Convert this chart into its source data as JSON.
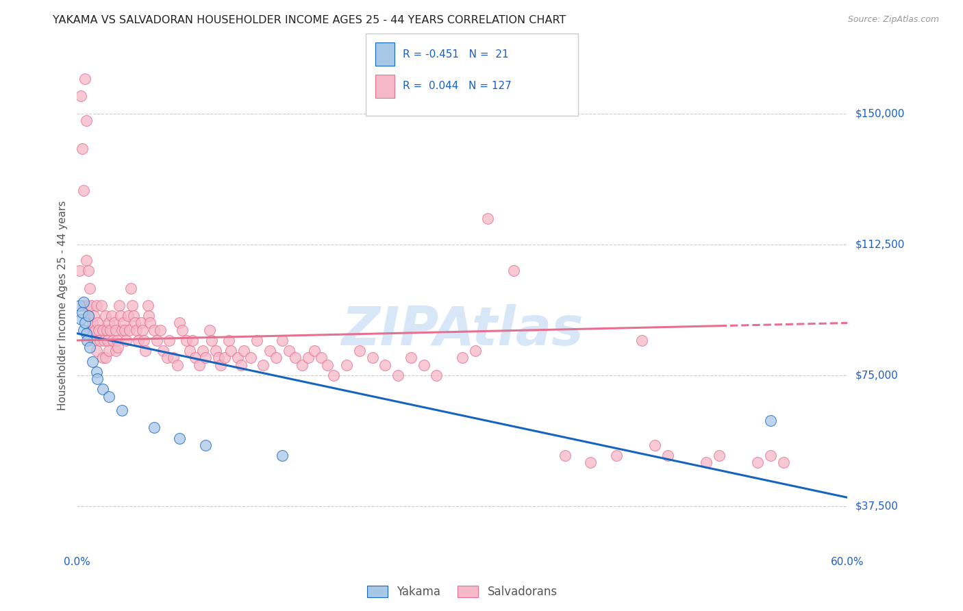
{
  "title": "YAKAMA VS SALVADORAN HOUSEHOLDER INCOME AGES 25 - 44 YEARS CORRELATION CHART",
  "source": "Source: ZipAtlas.com",
  "ylabel": "Householder Income Ages 25 - 44 years",
  "xmin": 0.0,
  "xmax": 0.6,
  "ymin": 25000,
  "ymax": 165000,
  "yticks": [
    37500,
    75000,
    112500,
    150000
  ],
  "ytick_labels": [
    "$37,500",
    "$75,000",
    "$112,500",
    "$150,000"
  ],
  "watermark": "ZIPAtlas",
  "legend_r_yakama": "-0.451",
  "legend_n_yakama": "21",
  "legend_r_salva": "0.044",
  "legend_n_salva": "127",
  "yakama_color": "#a8c8e8",
  "salva_color": "#f5b8c8",
  "yakama_line_color": "#1565c0",
  "salva_line_color": "#e57090",
  "background_color": "#ffffff",
  "yakama_scatter": [
    [
      0.002,
      95000
    ],
    [
      0.003,
      91000
    ],
    [
      0.004,
      93000
    ],
    [
      0.005,
      96000
    ],
    [
      0.005,
      88000
    ],
    [
      0.006,
      90000
    ],
    [
      0.007,
      87000
    ],
    [
      0.008,
      85000
    ],
    [
      0.009,
      92000
    ],
    [
      0.01,
      83000
    ],
    [
      0.012,
      79000
    ],
    [
      0.015,
      76000
    ],
    [
      0.016,
      74000
    ],
    [
      0.02,
      71000
    ],
    [
      0.025,
      69000
    ],
    [
      0.035,
      65000
    ],
    [
      0.06,
      60000
    ],
    [
      0.08,
      57000
    ],
    [
      0.1,
      55000
    ],
    [
      0.16,
      52000
    ],
    [
      0.54,
      62000
    ]
  ],
  "salva_scatter": [
    [
      0.002,
      105000
    ],
    [
      0.003,
      155000
    ],
    [
      0.004,
      140000
    ],
    [
      0.005,
      128000
    ],
    [
      0.005,
      95000
    ],
    [
      0.006,
      170000
    ],
    [
      0.006,
      160000
    ],
    [
      0.007,
      148000
    ],
    [
      0.007,
      108000
    ],
    [
      0.008,
      95000
    ],
    [
      0.009,
      105000
    ],
    [
      0.009,
      92000
    ],
    [
      0.01,
      100000
    ],
    [
      0.01,
      88000
    ],
    [
      0.011,
      95000
    ],
    [
      0.012,
      90000
    ],
    [
      0.013,
      92000
    ],
    [
      0.013,
      85000
    ],
    [
      0.014,
      88000
    ],
    [
      0.015,
      95000
    ],
    [
      0.015,
      82000
    ],
    [
      0.016,
      90000
    ],
    [
      0.017,
      88000
    ],
    [
      0.018,
      85000
    ],
    [
      0.019,
      95000
    ],
    [
      0.02,
      88000
    ],
    [
      0.02,
      80000
    ],
    [
      0.021,
      85000
    ],
    [
      0.022,
      92000
    ],
    [
      0.022,
      80000
    ],
    [
      0.023,
      88000
    ],
    [
      0.024,
      85000
    ],
    [
      0.025,
      90000
    ],
    [
      0.025,
      82000
    ],
    [
      0.026,
      88000
    ],
    [
      0.027,
      92000
    ],
    [
      0.028,
      85000
    ],
    [
      0.029,
      90000
    ],
    [
      0.03,
      88000
    ],
    [
      0.03,
      82000
    ],
    [
      0.031,
      85000
    ],
    [
      0.032,
      83000
    ],
    [
      0.033,
      95000
    ],
    [
      0.034,
      92000
    ],
    [
      0.035,
      88000
    ],
    [
      0.036,
      90000
    ],
    [
      0.037,
      88000
    ],
    [
      0.038,
      85000
    ],
    [
      0.04,
      92000
    ],
    [
      0.041,
      88000
    ],
    [
      0.042,
      100000
    ],
    [
      0.043,
      95000
    ],
    [
      0.044,
      92000
    ],
    [
      0.045,
      90000
    ],
    [
      0.046,
      88000
    ],
    [
      0.048,
      85000
    ],
    [
      0.05,
      90000
    ],
    [
      0.051,
      88000
    ],
    [
      0.052,
      85000
    ],
    [
      0.053,
      82000
    ],
    [
      0.055,
      95000
    ],
    [
      0.056,
      92000
    ],
    [
      0.057,
      90000
    ],
    [
      0.06,
      88000
    ],
    [
      0.062,
      85000
    ],
    [
      0.065,
      88000
    ],
    [
      0.067,
      82000
    ],
    [
      0.07,
      80000
    ],
    [
      0.072,
      85000
    ],
    [
      0.075,
      80000
    ],
    [
      0.078,
      78000
    ],
    [
      0.08,
      90000
    ],
    [
      0.082,
      88000
    ],
    [
      0.085,
      85000
    ],
    [
      0.088,
      82000
    ],
    [
      0.09,
      85000
    ],
    [
      0.092,
      80000
    ],
    [
      0.095,
      78000
    ],
    [
      0.098,
      82000
    ],
    [
      0.1,
      80000
    ],
    [
      0.103,
      88000
    ],
    [
      0.105,
      85000
    ],
    [
      0.108,
      82000
    ],
    [
      0.11,
      80000
    ],
    [
      0.112,
      78000
    ],
    [
      0.115,
      80000
    ],
    [
      0.118,
      85000
    ],
    [
      0.12,
      82000
    ],
    [
      0.125,
      80000
    ],
    [
      0.128,
      78000
    ],
    [
      0.13,
      82000
    ],
    [
      0.135,
      80000
    ],
    [
      0.14,
      85000
    ],
    [
      0.145,
      78000
    ],
    [
      0.15,
      82000
    ],
    [
      0.155,
      80000
    ],
    [
      0.16,
      85000
    ],
    [
      0.165,
      82000
    ],
    [
      0.17,
      80000
    ],
    [
      0.175,
      78000
    ],
    [
      0.18,
      80000
    ],
    [
      0.185,
      82000
    ],
    [
      0.19,
      80000
    ],
    [
      0.195,
      78000
    ],
    [
      0.2,
      75000
    ],
    [
      0.21,
      78000
    ],
    [
      0.22,
      82000
    ],
    [
      0.23,
      80000
    ],
    [
      0.24,
      78000
    ],
    [
      0.25,
      75000
    ],
    [
      0.26,
      80000
    ],
    [
      0.27,
      78000
    ],
    [
      0.28,
      75000
    ],
    [
      0.3,
      80000
    ],
    [
      0.31,
      82000
    ],
    [
      0.32,
      120000
    ],
    [
      0.34,
      105000
    ],
    [
      0.38,
      52000
    ],
    [
      0.4,
      50000
    ],
    [
      0.42,
      52000
    ],
    [
      0.44,
      85000
    ],
    [
      0.45,
      55000
    ],
    [
      0.46,
      52000
    ],
    [
      0.49,
      50000
    ],
    [
      0.5,
      52000
    ],
    [
      0.53,
      50000
    ],
    [
      0.54,
      52000
    ],
    [
      0.55,
      50000
    ]
  ]
}
